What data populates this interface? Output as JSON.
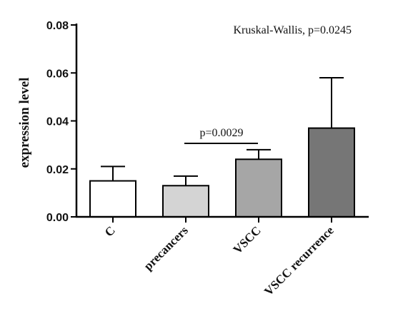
{
  "chart_data": {
    "type": "bar",
    "categories": [
      "C",
      "precancers",
      "VSCC",
      "VSCC recurrence"
    ],
    "values": [
      0.015,
      0.013,
      0.024,
      0.037
    ],
    "error_upper": [
      0.021,
      0.017,
      0.028,
      0.058
    ],
    "bar_colors": [
      "#ffffff",
      "#d4d4d4",
      "#a6a6a6",
      "#767676"
    ],
    "ylabel": "expression level",
    "ylim": [
      0,
      0.08
    ],
    "yticks": [
      "0.00",
      "0.02",
      "0.04",
      "0.06",
      "0.08"
    ],
    "grid": false,
    "annotations": {
      "test": "Kruskal-Wallis, p=0.0245",
      "comparison": "p=0.0029"
    }
  }
}
